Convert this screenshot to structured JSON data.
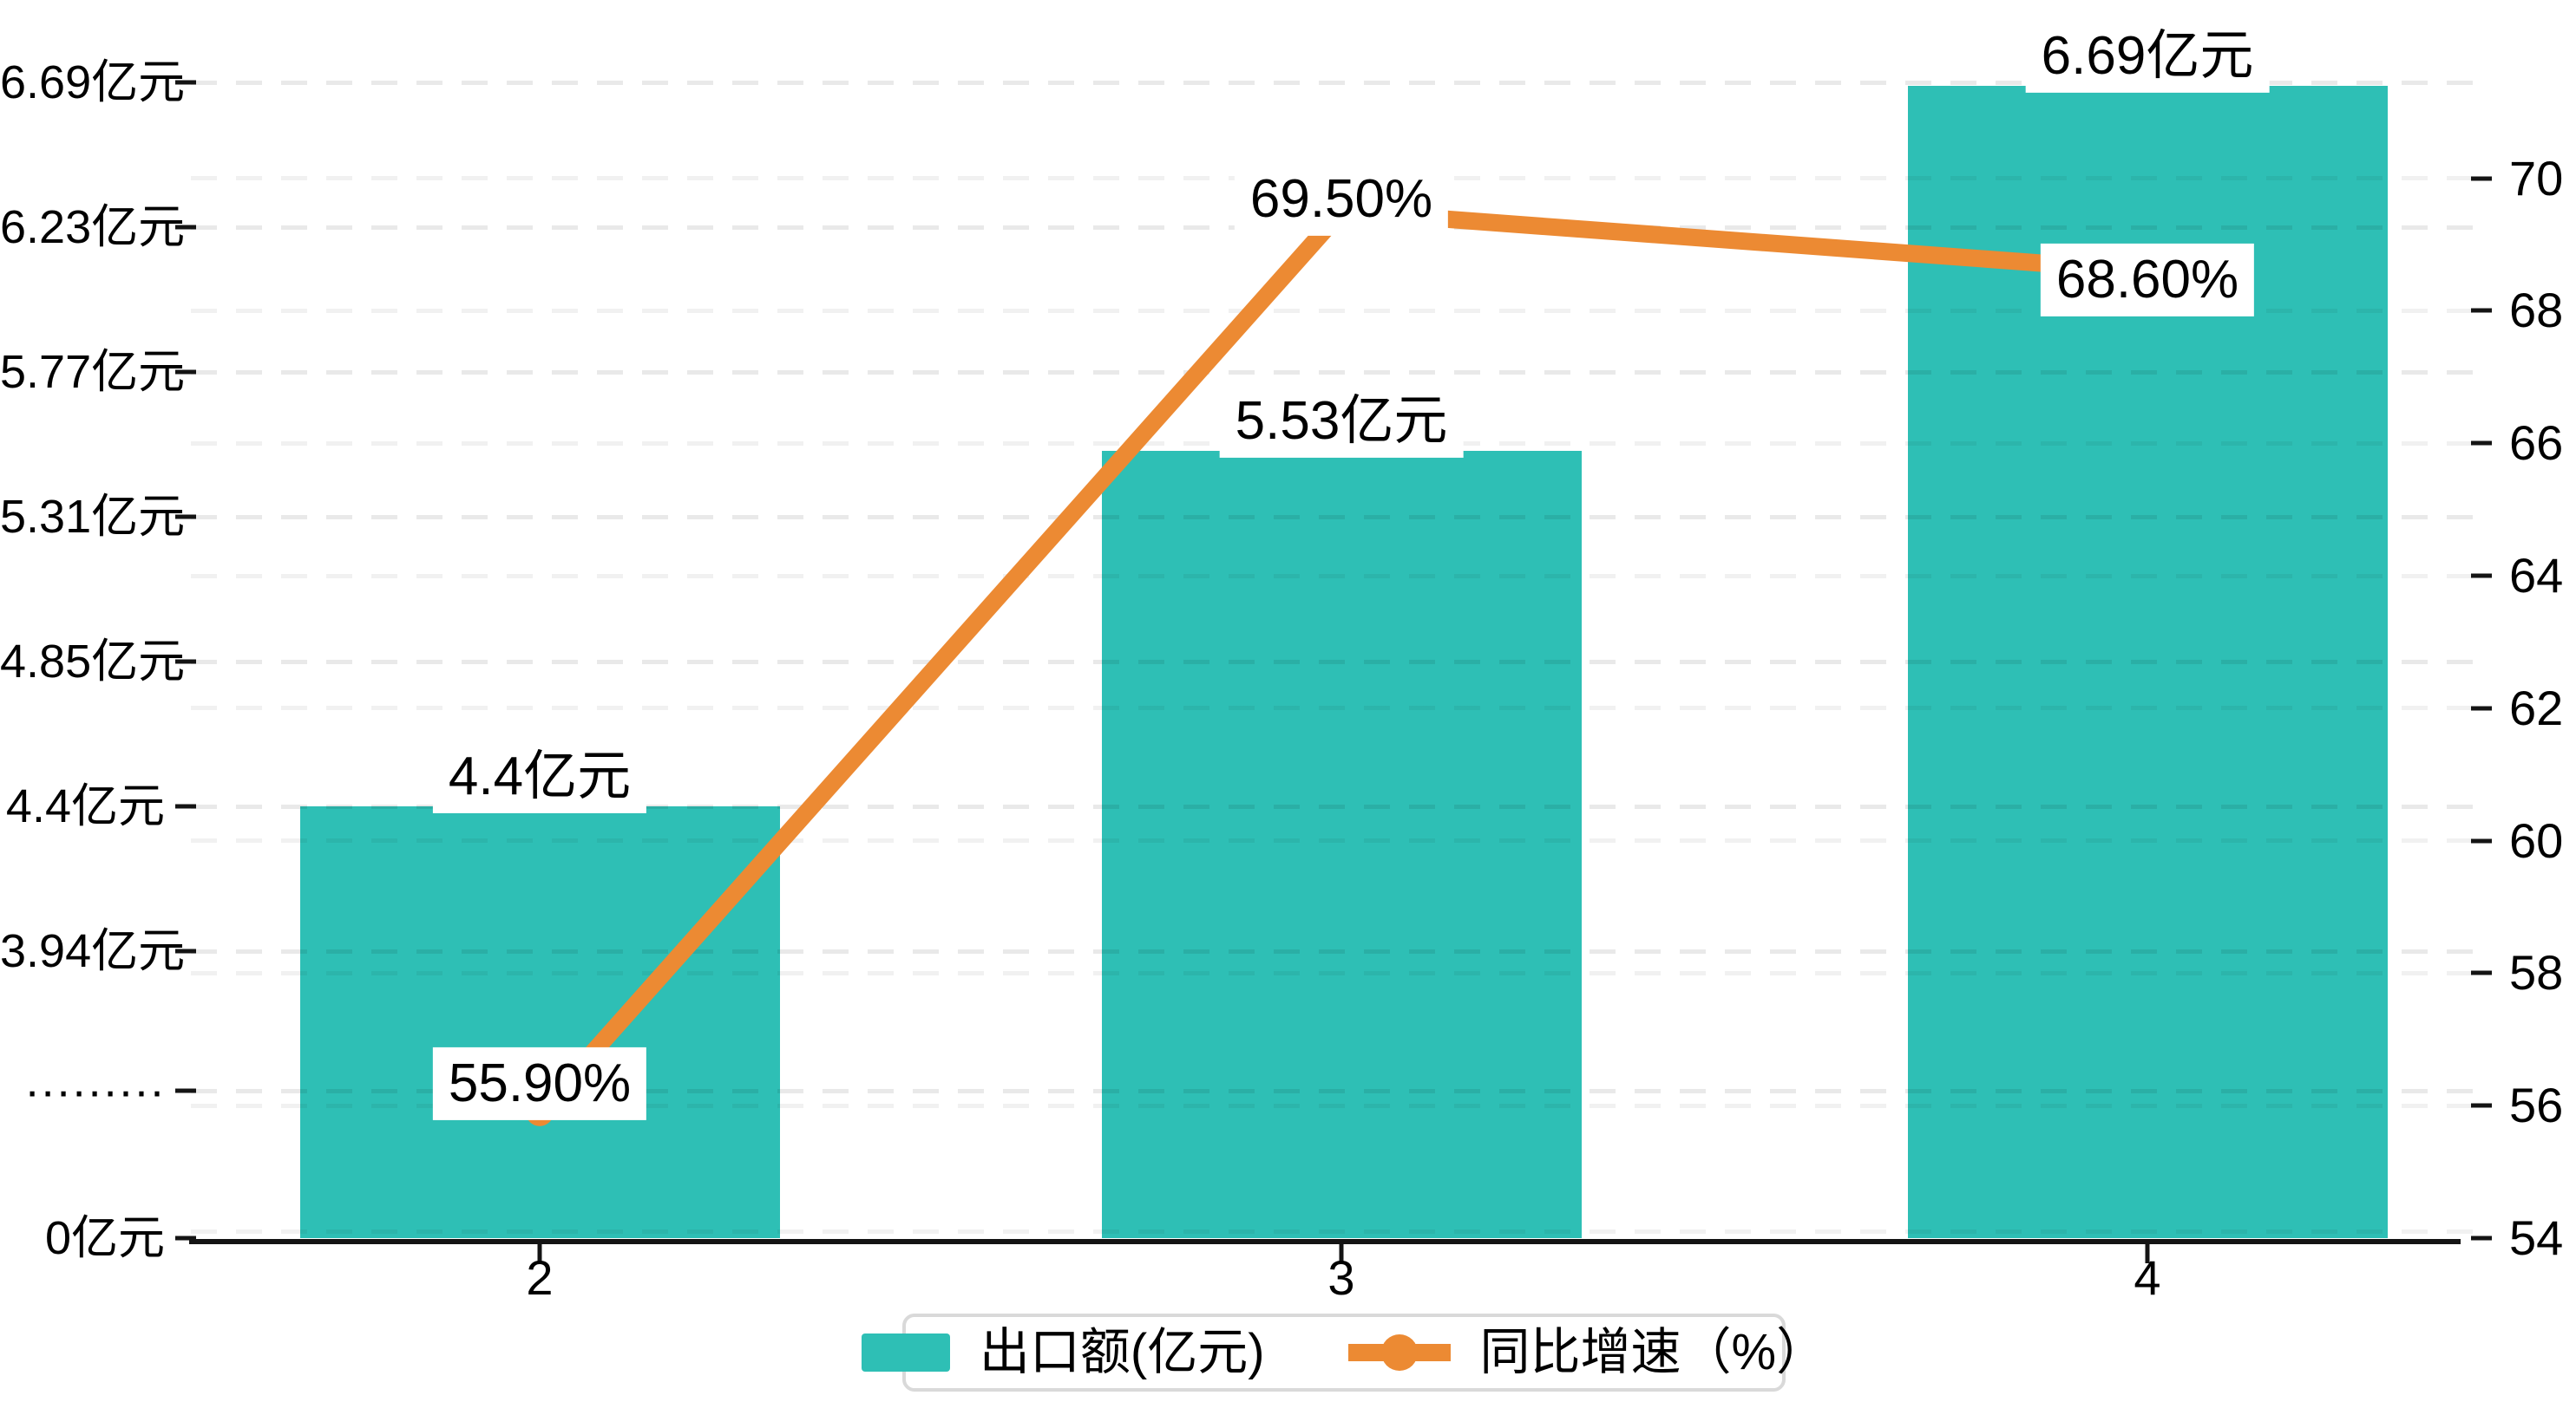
{
  "chart_data": {
    "type": "bar+line combo",
    "categories": [
      "2",
      "3",
      "4"
    ],
    "series": [
      {
        "name": "出口额(亿元)",
        "type": "bar",
        "color": "#2ebfb5",
        "values": [
          4.4,
          5.53,
          6.69
        ],
        "data_labels": [
          "4.4亿元",
          "5.53亿元",
          "6.69亿元"
        ]
      },
      {
        "name": "同比增速（%）",
        "type": "line",
        "color": "#ec8a33",
        "values": [
          55.9,
          69.5,
          68.6
        ],
        "data_labels": [
          "55.90%",
          "69.50%",
          "68.60%"
        ]
      }
    ],
    "left_axis": {
      "tick_labels": [
        "6.69亿元",
        "6.23亿元",
        "5.77亿元",
        "5.31亿元",
        "4.85亿元",
        "4.4亿元",
        "3.94亿元",
        "·········",
        "0亿元"
      ],
      "tick_values": [
        6.69,
        6.23,
        5.77,
        5.31,
        4.85,
        4.4,
        3.94,
        null,
        0
      ],
      "axis_break": true
    },
    "right_axis": {
      "tick_labels": [
        "70",
        "68",
        "66",
        "64",
        "62",
        "60",
        "58",
        "56",
        "54"
      ],
      "tick_values": [
        70,
        68,
        66,
        64,
        62,
        60,
        58,
        56,
        54
      ],
      "min": 54,
      "max": 70
    },
    "grid": {
      "dashed": true,
      "gridline_color": "#e8e8e8"
    },
    "legend": {
      "position": "bottom-center",
      "items": [
        {
          "label": "出口额(亿元)",
          "marker": "rect",
          "color": "#2ebfb5"
        },
        {
          "label": "同比增速（%）",
          "marker": "line-circle",
          "color": "#ec8a33"
        }
      ]
    }
  }
}
